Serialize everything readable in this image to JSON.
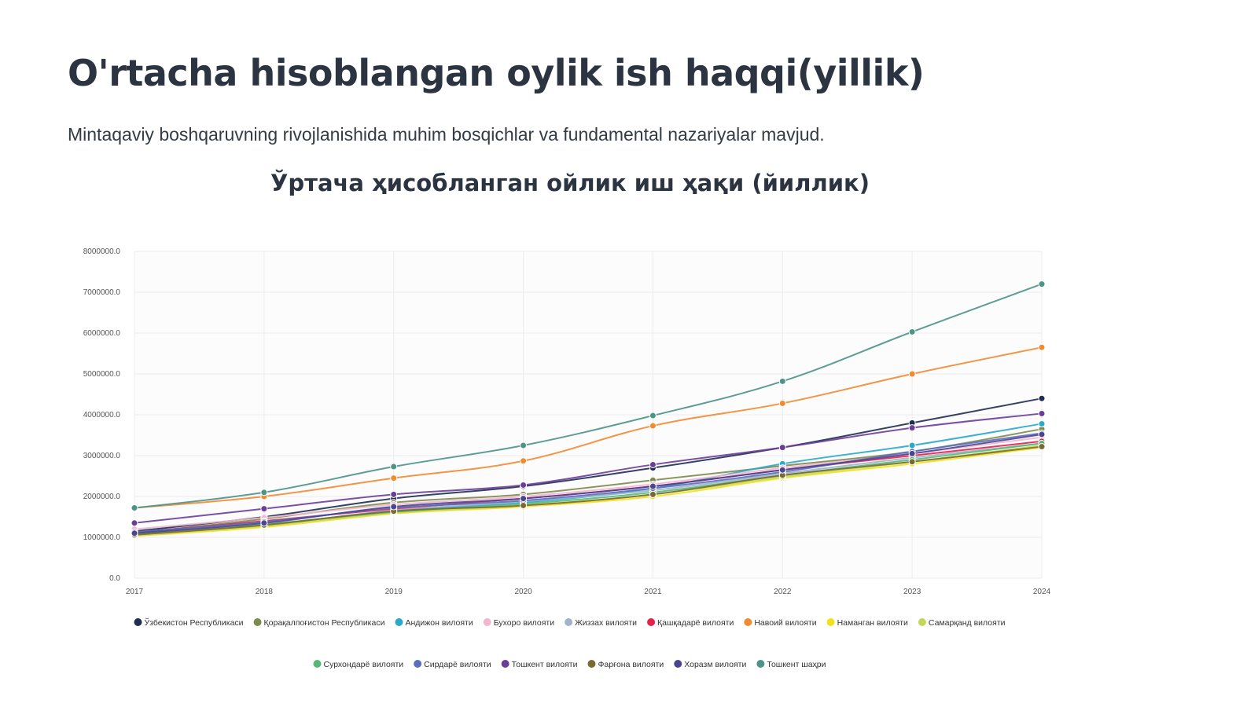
{
  "slide": {
    "title": "O'rtacha hisoblangan oylik ish haqqi(yillik)",
    "subtitle": "Mintaqaviy boshqaruvning rivojlanishida muhim bosqichlar va fundamental nazariyalar mavjud."
  },
  "chart_data": {
    "type": "line",
    "title": "Ўртача ҳисобланган ойлик иш ҳақи (йиллик)",
    "xlabel": "",
    "ylabel": "",
    "x": [
      "2017",
      "2018",
      "2019",
      "2020",
      "2021",
      "2022",
      "2023",
      "2024"
    ],
    "ylim": [
      0,
      8000000
    ],
    "yticks": [
      "0.0",
      "1000000.0",
      "2000000.0",
      "3000000.0",
      "4000000.0",
      "5000000.0",
      "6000000.0",
      "7000000.0",
      "8000000.0"
    ],
    "grid": true,
    "legend_position": "bottom",
    "series": [
      {
        "name": "Ўзбекистон Республикаси",
        "color": "#1f2d50",
        "values": [
          1150000,
          1500000,
          1950000,
          2250000,
          2700000,
          3200000,
          3800000,
          4400000
        ]
      },
      {
        "name": "Қорақалпоғистон Республикаси",
        "color": "#7d8b4d",
        "values": [
          1100000,
          1450000,
          1850000,
          2050000,
          2400000,
          2750000,
          3100000,
          3650000
        ]
      },
      {
        "name": "Андижон вилояти",
        "color": "#29a9cc",
        "values": [
          1070000,
          1300000,
          1650000,
          1850000,
          2200000,
          2800000,
          3250000,
          3780000
        ]
      },
      {
        "name": "Бухоро вилояти",
        "color": "#f2b6cf",
        "values": [
          1200000,
          1480000,
          1800000,
          2000000,
          2300000,
          2700000,
          3050000,
          3450000
        ]
      },
      {
        "name": "Жиззах вилояти",
        "color": "#9fb4c8",
        "values": [
          1080000,
          1290000,
          1660000,
          1880000,
          2150000,
          2560000,
          2950000,
          3300000
        ]
      },
      {
        "name": "Қашқадарё вилояти",
        "color": "#e8204a",
        "values": [
          1120000,
          1400000,
          1700000,
          1950000,
          2250000,
          2650000,
          3000000,
          3350000
        ]
      },
      {
        "name": "Навоий вилояти",
        "color": "#f28a30",
        "values": [
          1720000,
          2000000,
          2450000,
          2870000,
          3730000,
          4280000,
          5000000,
          5650000
        ]
      },
      {
        "name": "Наманган вилояти",
        "color": "#f2e11a",
        "values": [
          1030000,
          1250000,
          1580000,
          1750000,
          2000000,
          2450000,
          2800000,
          3200000
        ]
      },
      {
        "name": "Самарқанд вилояти",
        "color": "#c2d85a",
        "values": [
          1050000,
          1280000,
          1600000,
          1780000,
          2050000,
          2480000,
          2850000,
          3250000
        ]
      },
      {
        "name": "Сурхондарё вилояти",
        "color": "#55b877",
        "values": [
          1090000,
          1320000,
          1620000,
          1820000,
          2100000,
          2520000,
          2900000,
          3300000
        ]
      },
      {
        "name": "Сирдарё вилояти",
        "color": "#5b6dbf",
        "values": [
          1130000,
          1380000,
          1720000,
          1900000,
          2200000,
          2600000,
          3100000,
          3550000
        ]
      },
      {
        "name": "Тошкент вилояти",
        "color": "#6b3d99",
        "values": [
          1350000,
          1700000,
          2050000,
          2280000,
          2780000,
          3200000,
          3680000,
          4030000
        ]
      },
      {
        "name": "Фарғона вилояти",
        "color": "#7a6a30",
        "values": [
          1060000,
          1300000,
          1640000,
          1780000,
          2050000,
          2520000,
          2850000,
          3220000
        ]
      },
      {
        "name": "Хоразм вилояти",
        "color": "#4a4590",
        "values": [
          1100000,
          1350000,
          1750000,
          1950000,
          2250000,
          2650000,
          3050000,
          3520000
        ]
      },
      {
        "name": "Тошкент шаҳри",
        "color": "#4c9486",
        "values": [
          1720000,
          2100000,
          2730000,
          3250000,
          3980000,
          4820000,
          6030000,
          7200000
        ]
      }
    ]
  }
}
